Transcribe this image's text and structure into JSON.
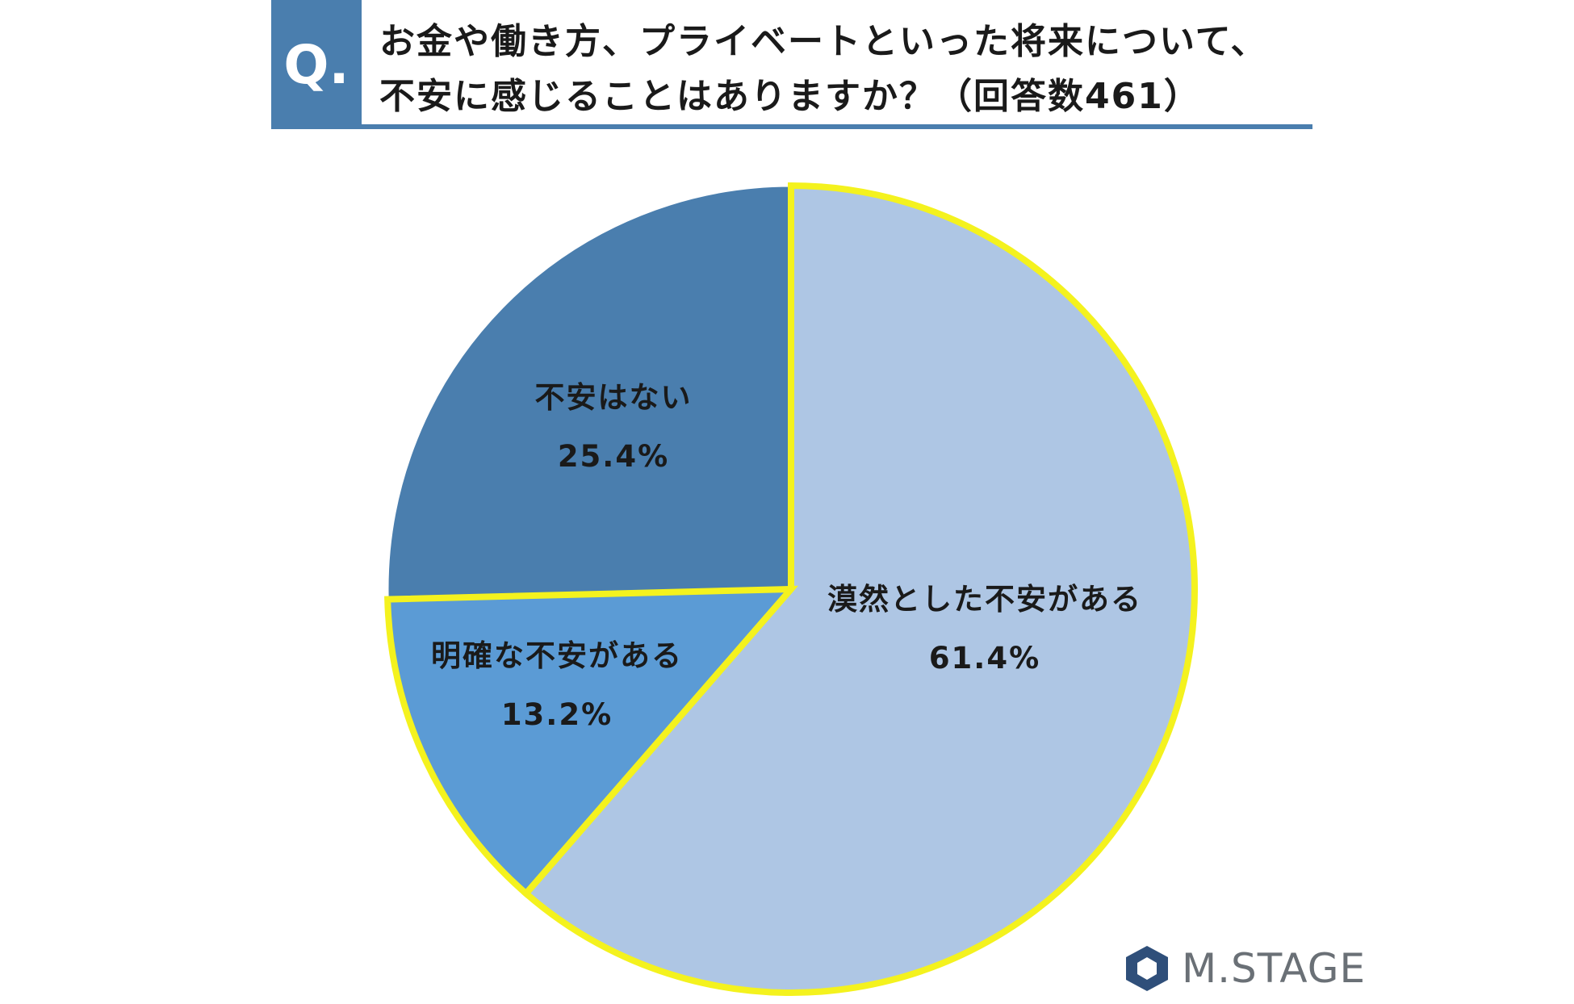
{
  "header": {
    "badge": "Q.",
    "question_line1": "お金や働き方、プライベートといった将来について、",
    "question_line2": "不安に感じることはありますか？（回答数461）"
  },
  "colors": {
    "header_blue": "#4a7eae",
    "slice_light": "#aec6e4",
    "slice_mid": "#5b9bd5",
    "slice_dark": "#4a7eae",
    "highlight_outline": "#f4f21e",
    "logo_gray": "#6a7076"
  },
  "chart_data": {
    "type": "pie",
    "start": "12 o'clock, clockwise",
    "slices": [
      {
        "label": "漠然とした不安がある",
        "value": 61.4,
        "display": "61.4%",
        "color": "#aec6e4",
        "highlighted": true
      },
      {
        "label": "明確な不安がある",
        "value": 13.2,
        "display": "13.2%",
        "color": "#5b9bd5",
        "highlighted": true
      },
      {
        "label": "不安はない",
        "value": 25.4,
        "display": "25.4%",
        "color": "#4a7eae",
        "highlighted": false
      }
    ]
  },
  "logo": {
    "text": "M.STAGE",
    "icon": "hexagon-logo-icon"
  }
}
